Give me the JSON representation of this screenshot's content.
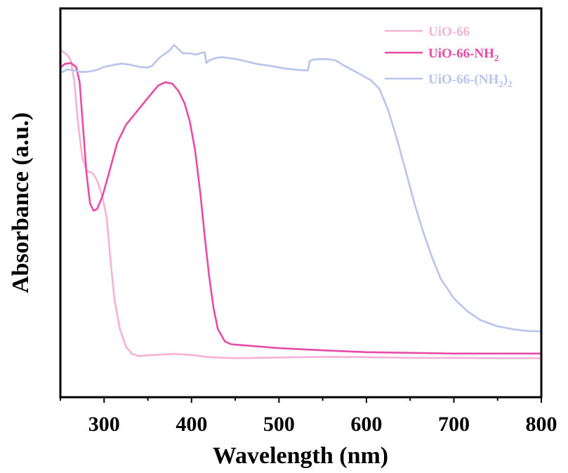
{
  "chart_data": {
    "type": "line",
    "title": "",
    "xlabel": "Wavelength (nm)",
    "ylabel": "Absorbance (a.u.)",
    "xlim": [
      250,
      800
    ],
    "ylim": [
      0,
      1
    ],
    "xticks": [
      300,
      400,
      500,
      600,
      700,
      800
    ],
    "xtick_labels": [
      "300",
      "400",
      "500",
      "600",
      "700",
      "800"
    ],
    "yticks": [],
    "grid": false,
    "legend_position": "top-right",
    "series": [
      {
        "name": "UiO-66",
        "legend_main": "UiO-66",
        "legend_sub": "",
        "legend_tail": "",
        "color": "#f4b3d3",
        "points": [
          [
            250,
            0.92
          ],
          [
            258,
            0.905
          ],
          [
            262,
            0.89
          ],
          [
            266,
            0.83
          ],
          [
            270,
            0.72
          ],
          [
            275,
            0.62
          ],
          [
            280,
            0.582
          ],
          [
            287,
            0.575
          ],
          [
            292,
            0.555
          ],
          [
            298,
            0.51
          ],
          [
            303,
            0.45
          ],
          [
            307,
            0.34
          ],
          [
            312,
            0.22
          ],
          [
            318,
            0.14
          ],
          [
            325,
            0.09
          ],
          [
            332,
            0.07
          ],
          [
            340,
            0.064
          ],
          [
            350,
            0.066
          ],
          [
            380,
            0.07
          ],
          [
            400,
            0.067
          ],
          [
            420,
            0.061
          ],
          [
            450,
            0.058
          ],
          [
            500,
            0.06
          ],
          [
            550,
            0.062
          ],
          [
            600,
            0.061
          ],
          [
            650,
            0.059
          ],
          [
            700,
            0.059
          ],
          [
            750,
            0.058
          ],
          [
            800,
            0.058
          ]
        ]
      },
      {
        "name": "UiO-66-NH2",
        "legend_main": "UiO-66-NH",
        "legend_sub": "2",
        "legend_tail": "",
        "color": "#e84aa8",
        "points": [
          [
            250,
            0.87
          ],
          [
            255,
            0.88
          ],
          [
            262,
            0.883
          ],
          [
            268,
            0.872
          ],
          [
            272,
            0.83
          ],
          [
            276,
            0.7
          ],
          [
            280,
            0.57
          ],
          [
            284,
            0.49
          ],
          [
            288,
            0.47
          ],
          [
            292,
            0.475
          ],
          [
            298,
            0.51
          ],
          [
            305,
            0.57
          ],
          [
            315,
            0.66
          ],
          [
            325,
            0.71
          ],
          [
            335,
            0.74
          ],
          [
            345,
            0.77
          ],
          [
            355,
            0.8
          ],
          [
            362,
            0.82
          ],
          [
            370,
            0.829
          ],
          [
            378,
            0.825
          ],
          [
            385,
            0.805
          ],
          [
            392,
            0.77
          ],
          [
            398,
            0.72
          ],
          [
            404,
            0.64
          ],
          [
            410,
            0.52
          ],
          [
            415,
            0.4
          ],
          [
            420,
            0.29
          ],
          [
            425,
            0.2
          ],
          [
            430,
            0.14
          ],
          [
            438,
            0.105
          ],
          [
            445,
            0.097
          ],
          [
            460,
            0.094
          ],
          [
            500,
            0.086
          ],
          [
            550,
            0.08
          ],
          [
            600,
            0.075
          ],
          [
            650,
            0.073
          ],
          [
            700,
            0.071
          ],
          [
            750,
            0.071
          ],
          [
            800,
            0.071
          ]
        ]
      },
      {
        "name": "UiO-66-(NH2)2",
        "legend_main": "UiO-66-(NH",
        "legend_sub": "2",
        "legend_tail": ")2",
        "color": "#b8c4ee",
        "points": [
          [
            250,
            0.855
          ],
          [
            258,
            0.865
          ],
          [
            265,
            0.863
          ],
          [
            272,
            0.858
          ],
          [
            280,
            0.858
          ],
          [
            290,
            0.862
          ],
          [
            300,
            0.872
          ],
          [
            310,
            0.877
          ],
          [
            320,
            0.881
          ],
          [
            330,
            0.878
          ],
          [
            340,
            0.872
          ],
          [
            350,
            0.87
          ],
          [
            355,
            0.875
          ],
          [
            362,
            0.895
          ],
          [
            370,
            0.91
          ],
          [
            375,
            0.918
          ],
          [
            380,
            0.933
          ],
          [
            385,
            0.922
          ],
          [
            390,
            0.91
          ],
          [
            398,
            0.91
          ],
          [
            405,
            0.906
          ],
          [
            412,
            0.912
          ],
          [
            415,
            0.913
          ],
          [
            417,
            0.883
          ],
          [
            420,
            0.89
          ],
          [
            428,
            0.897
          ],
          [
            435,
            0.899
          ],
          [
            445,
            0.896
          ],
          [
            455,
            0.892
          ],
          [
            465,
            0.886
          ],
          [
            475,
            0.88
          ],
          [
            490,
            0.875
          ],
          [
            505,
            0.868
          ],
          [
            520,
            0.864
          ],
          [
            533,
            0.862
          ],
          [
            535,
            0.888
          ],
          [
            540,
            0.893
          ],
          [
            555,
            0.894
          ],
          [
            565,
            0.89
          ],
          [
            575,
            0.875
          ],
          [
            590,
            0.855
          ],
          [
            605,
            0.835
          ],
          [
            615,
            0.81
          ],
          [
            625,
            0.75
          ],
          [
            635,
            0.67
          ],
          [
            645,
            0.58
          ],
          [
            655,
            0.49
          ],
          [
            665,
            0.41
          ],
          [
            675,
            0.34
          ],
          [
            685,
            0.28
          ],
          [
            700,
            0.225
          ],
          [
            715,
            0.19
          ],
          [
            730,
            0.165
          ],
          [
            750,
            0.147
          ],
          [
            770,
            0.138
          ],
          [
            785,
            0.134
          ],
          [
            800,
            0.133
          ]
        ]
      }
    ]
  }
}
